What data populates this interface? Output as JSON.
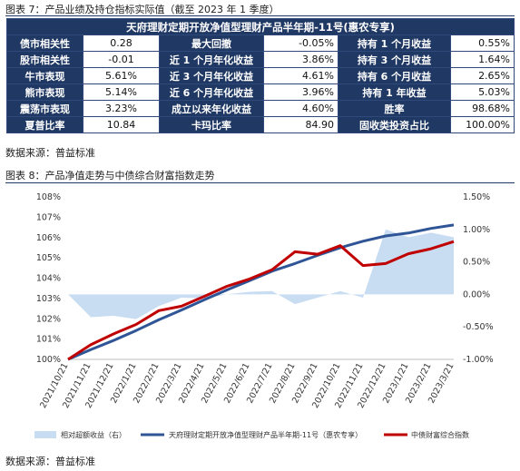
{
  "caption7": "图表 7：产品业绩及持仓指标实际值（截至 2023 年 1 季度）",
  "table": {
    "title": "天府理财定期开放净值型理财产品半年期-11号(惠农专享)",
    "rows": [
      [
        {
          "label": "债市相关性",
          "value": "0.28"
        },
        {
          "label": "最大回撤",
          "value": "-0.05%"
        },
        {
          "label": "持有 1 个月收益",
          "value": "0.55%"
        }
      ],
      [
        {
          "label": "股市相关性",
          "value": "-0.01"
        },
        {
          "label": "近 1 个月年化收益",
          "value": "3.86%"
        },
        {
          "label": "持有 3 个月收益",
          "value": "1.64%"
        }
      ],
      [
        {
          "label": "牛市表现",
          "value": "5.61%"
        },
        {
          "label": "近 3 个月年化收益",
          "value": "4.61%"
        },
        {
          "label": "持有 6 个月收益",
          "value": "2.65%"
        }
      ],
      [
        {
          "label": "熊市表现",
          "value": "5.14%"
        },
        {
          "label": "近 6 个月年化收益",
          "value": "3.96%"
        },
        {
          "label": "持有 1 年收益",
          "value": "5.03%"
        }
      ],
      [
        {
          "label": "震荡市表现",
          "value": "3.23%"
        },
        {
          "label": "成立以来年化收益",
          "value": "4.60%"
        },
        {
          "label": "胜率",
          "value": "98.68%"
        }
      ],
      [
        {
          "label": "夏普比率",
          "value": "10.84"
        },
        {
          "label": "卡玛比率",
          "value": "84.90"
        },
        {
          "label": "固收类投资占比",
          "value": "100.00%"
        }
      ]
    ]
  },
  "source1": "数据来源：普益标准",
  "caption8": "图表 8：产品净值走势与中债综合财富指数走势",
  "source2": "数据来源：普益标准",
  "colors": {
    "navy": "#1f3864",
    "product": "#2f5597",
    "index": "#c00000",
    "area": "#c9ddf2"
  },
  "chart_data": {
    "type": "line",
    "x": [
      "2021/10/21",
      "2021/11/21",
      "2021/12/21",
      "2022/1/21",
      "2022/2/21",
      "2022/3/21",
      "2022/4/21",
      "2022/5/21",
      "2022/6/21",
      "2022/7/21",
      "2022/8/21",
      "2022/9/21",
      "2022/10/21",
      "2022/11/21",
      "2022/12/21",
      "2023/1/21",
      "2023/2/21",
      "2023/3/21"
    ],
    "left_axis": {
      "ylim": [
        100,
        108
      ],
      "ticks": [
        "100%",
        "101%",
        "102%",
        "103%",
        "104%",
        "105%",
        "106%",
        "107%",
        "108%"
      ]
    },
    "right_axis": {
      "ylim": [
        -1.0,
        1.5
      ],
      "ticks": [
        "-1.00%",
        "-0.50%",
        "0.00%",
        "0.50%",
        "1.00%",
        "1.50%"
      ]
    },
    "series": [
      {
        "name": "相对超额收益（右）",
        "axis": "right",
        "kind": "area",
        "values": [
          0.0,
          -0.35,
          -0.33,
          -0.38,
          -0.18,
          -0.05,
          -0.06,
          0.0,
          0.04,
          0.05,
          -0.15,
          -0.05,
          0.05,
          -0.05,
          1.0,
          0.88,
          0.95,
          0.88
        ]
      },
      {
        "name": "天府理财定期开放净值型理财产品半年期-11号（惠农专享）",
        "axis": "left",
        "kind": "line",
        "values": [
          100.0,
          100.48,
          100.93,
          101.42,
          101.95,
          102.43,
          102.93,
          103.42,
          103.88,
          104.35,
          104.72,
          105.12,
          105.5,
          105.82,
          106.08,
          106.22,
          106.45,
          106.62
        ]
      },
      {
        "name": "中债财富综合指数",
        "axis": "left",
        "kind": "line",
        "values": [
          100.0,
          100.72,
          101.25,
          101.72,
          102.4,
          102.62,
          103.1,
          103.6,
          103.96,
          104.42,
          105.3,
          105.18,
          105.6,
          104.62,
          104.72,
          105.2,
          105.45,
          105.8
        ]
      }
    ]
  }
}
